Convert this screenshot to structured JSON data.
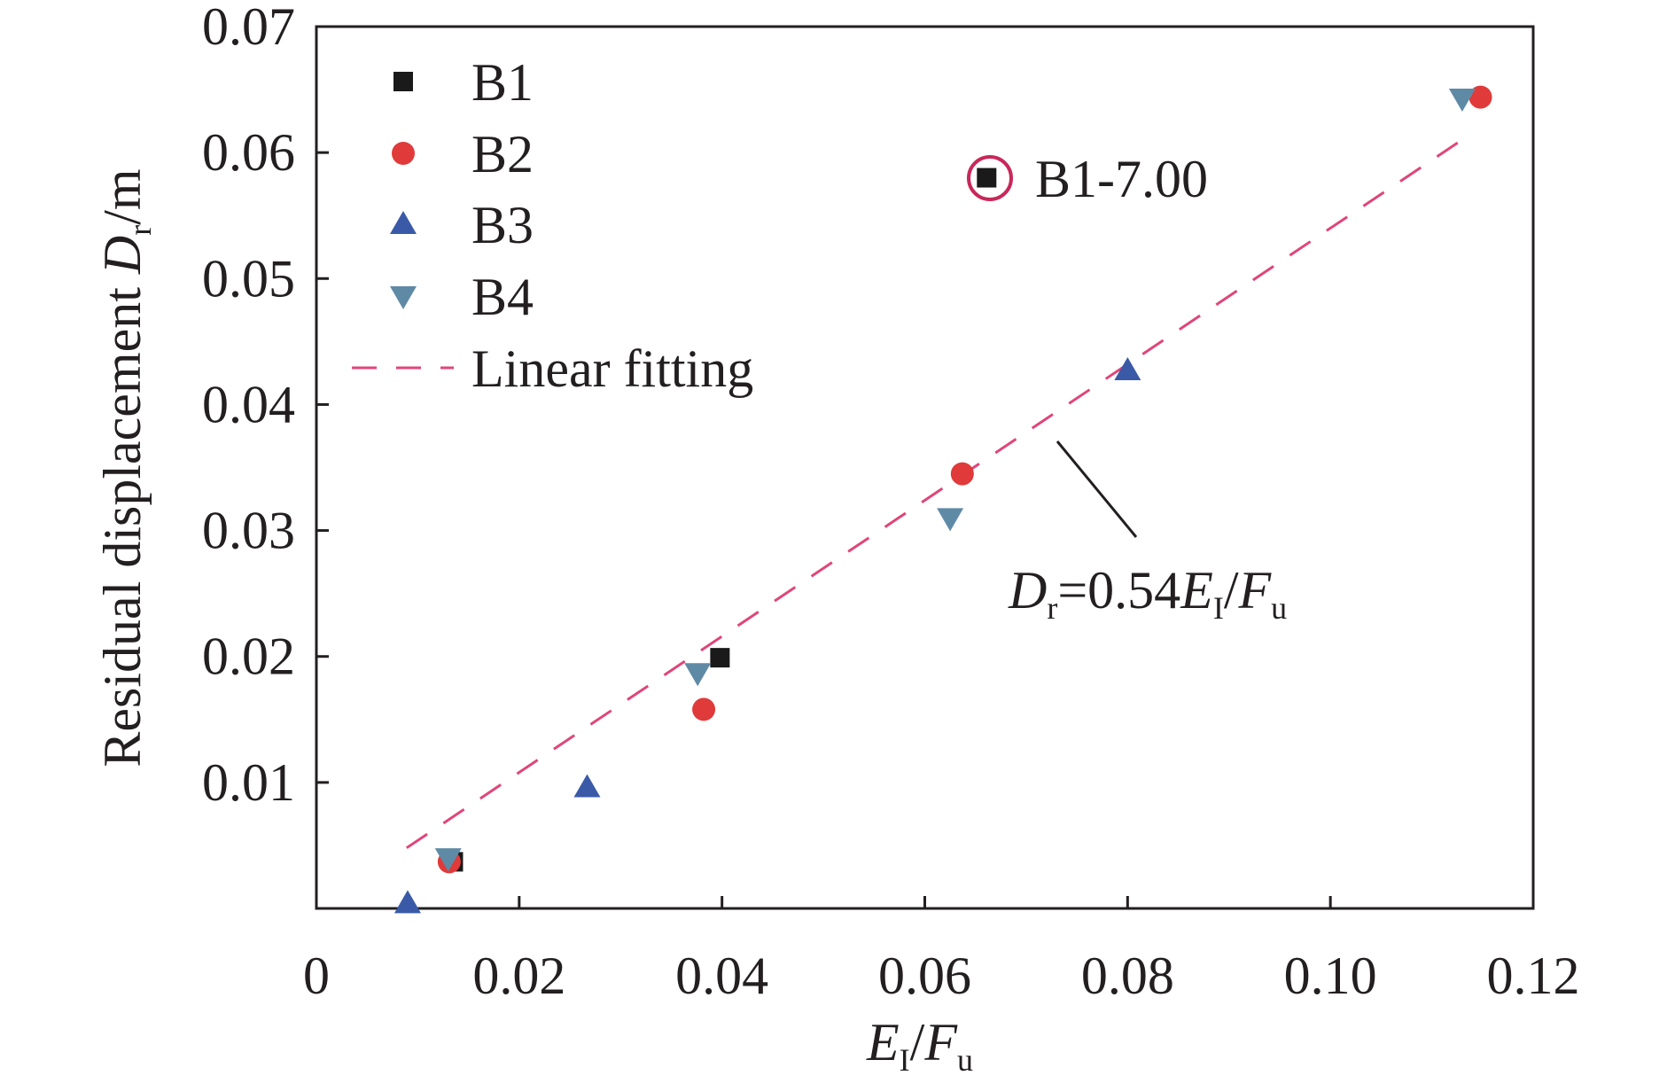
{
  "chart_data": {
    "type": "scatter",
    "xlabel": {
      "main": "E",
      "sub": "I",
      "sep": "/",
      "main2": "F",
      "sub2": "u"
    },
    "ylabel": {
      "prefix": "Residual displacement ",
      "var": "D",
      "sub": "r",
      "suffix": "/m"
    },
    "xlim": [
      0,
      0.12
    ],
    "ylim": [
      0,
      0.07
    ],
    "x_ticks": [
      0,
      0.02,
      0.04,
      0.06,
      0.08,
      0.1,
      0.12
    ],
    "x_tick_labels": [
      "0",
      "0.02",
      "0.04",
      "0.06",
      "0.08",
      "0.10",
      "0.12"
    ],
    "y_ticks": [
      0.01,
      0.02,
      0.03,
      0.04,
      0.05,
      0.06,
      0.07
    ],
    "y_tick_labels": [
      "0.01",
      "0.02",
      "0.03",
      "0.04",
      "0.05",
      "0.06",
      "0.07"
    ],
    "grid": false,
    "legend_position": "top-left",
    "series": [
      {
        "name": "B1",
        "marker": "square",
        "color": "#1a1a1a",
        "points": [
          [
            0.0135,
            0.0037
          ],
          [
            0.0398,
            0.0199
          ],
          [
            0.0661,
            0.058
          ]
        ]
      },
      {
        "name": "B2",
        "marker": "circle",
        "color": "#e03a3a",
        "points": [
          [
            0.0131,
            0.0037
          ],
          [
            0.0382,
            0.0158
          ],
          [
            0.0637,
            0.0345
          ],
          [
            0.1148,
            0.0644
          ]
        ]
      },
      {
        "name": "B3",
        "marker": "triangle-up",
        "color": "#3a5aa8",
        "points": [
          [
            0.009,
            0.0004
          ],
          [
            0.0267,
            0.0096
          ],
          [
            0.08,
            0.0427
          ]
        ]
      },
      {
        "name": "B4",
        "marker": "triangle-down",
        "color": "#5f8aa6",
        "points": [
          [
            0.013,
            0.004
          ],
          [
            0.0376,
            0.0187
          ],
          [
            0.0625,
            0.031
          ],
          [
            0.113,
            0.0643
          ]
        ]
      }
    ],
    "fit": {
      "name": "Linear fitting",
      "slope": 0.54,
      "x_range": [
        0.0089,
        0.1128
      ],
      "color": "#e0457a"
    },
    "annotations": {
      "highlight": {
        "label": "B1-7.00",
        "ring_color": "#c8285a"
      },
      "equation": {
        "lhs_var": "D",
        "lhs_sub": "r",
        "coef": "=0.54",
        "var1": "E",
        "sub1": "I",
        "sep": "/",
        "var2": "F",
        "sub2": "u"
      }
    }
  }
}
